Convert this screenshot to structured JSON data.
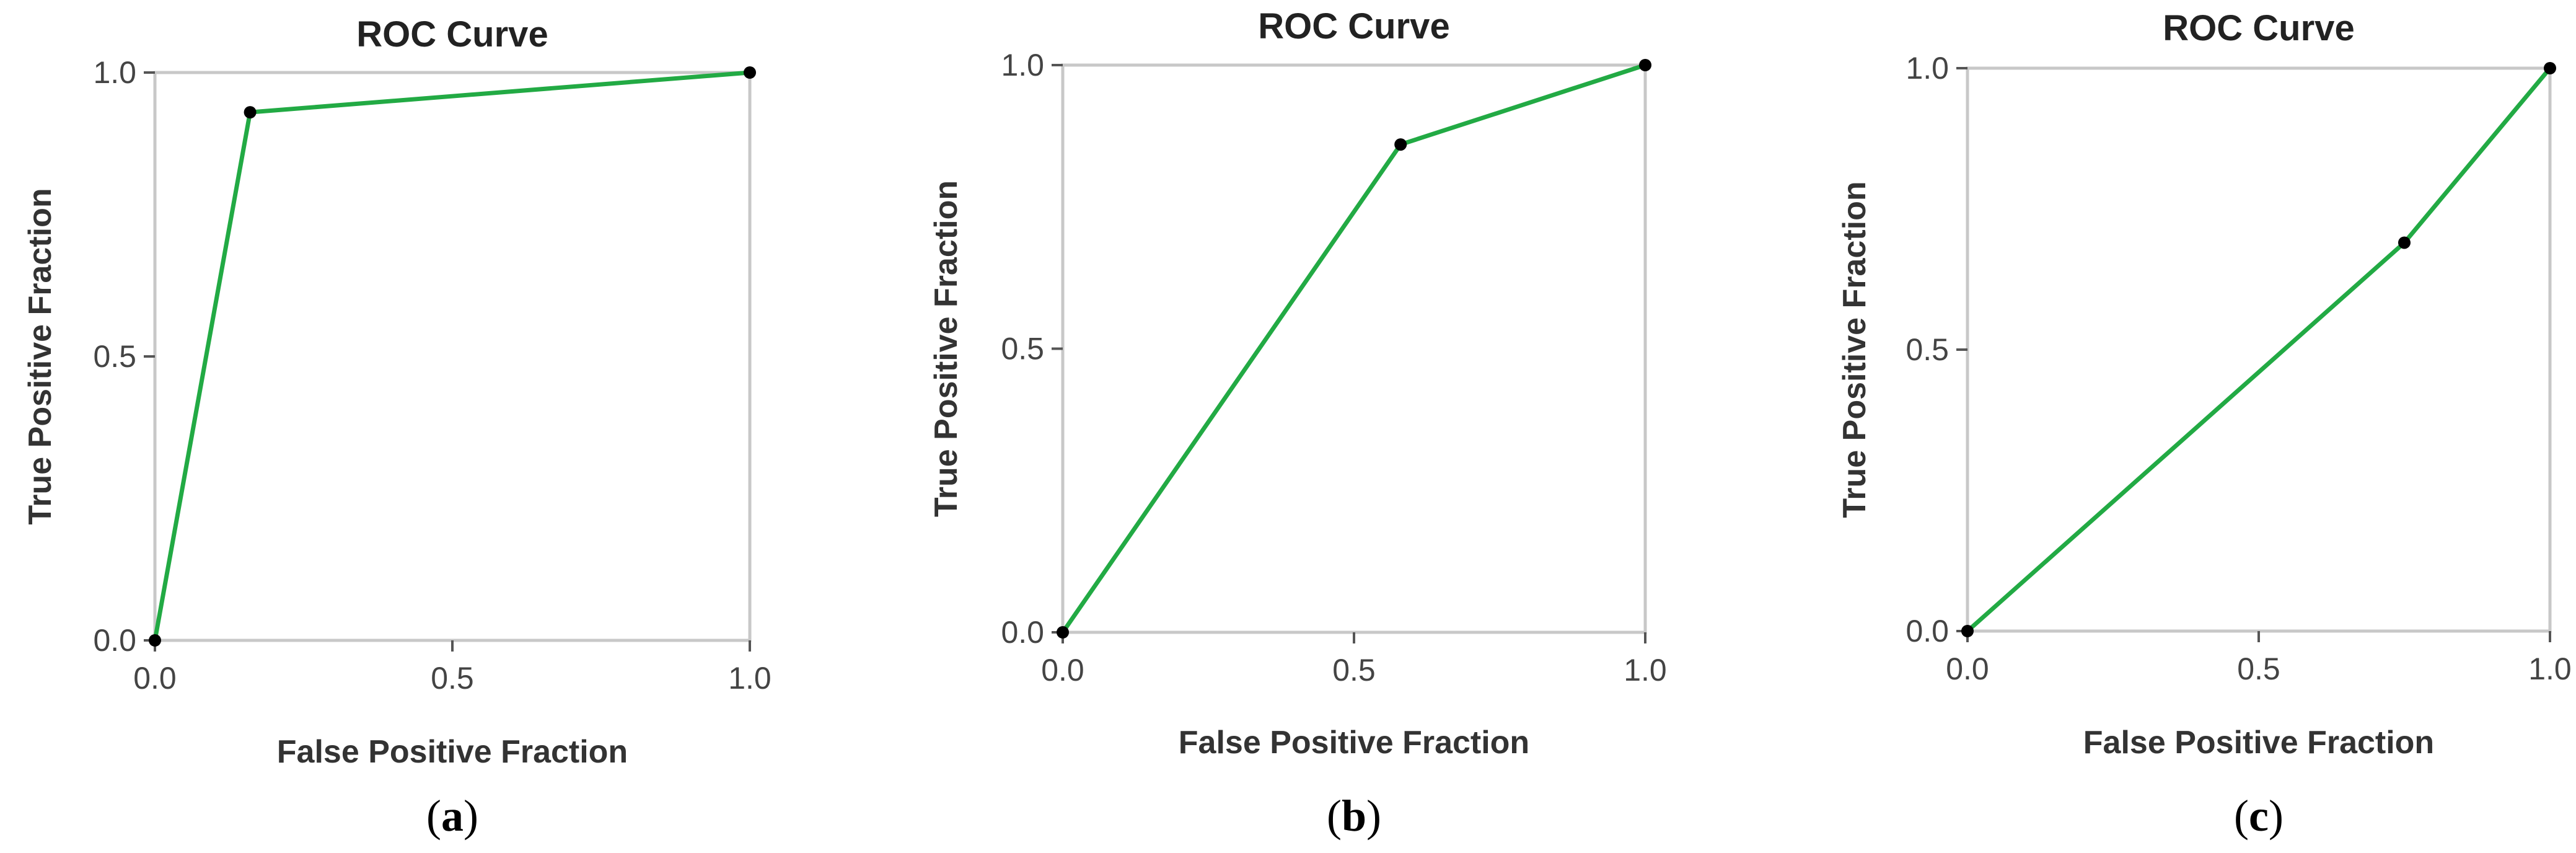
{
  "colors": {
    "curve": "#22aa44",
    "point": "#000000"
  },
  "chart_data": [
    {
      "type": "line",
      "title": "ROC Curve",
      "xlabel": "False Positive Fraction",
      "ylabel": "True Positive Fraction",
      "xlim": [
        0,
        1
      ],
      "ylim": [
        0,
        1
      ],
      "xticks": [
        0.0,
        0.5,
        1.0
      ],
      "yticks": [
        0.0,
        0.5,
        1.0
      ],
      "xtick_labels": [
        "0.0",
        "0.5",
        "1.0"
      ],
      "ytick_labels": [
        "0.0",
        "0.5",
        "1.0"
      ],
      "grid": false,
      "series": [
        {
          "name": "ROC",
          "x": [
            0.0,
            0.16,
            1.0
          ],
          "y": [
            0.0,
            0.93,
            1.0
          ]
        }
      ],
      "caption_open": "(",
      "caption_letter": "a",
      "caption_close": ")"
    },
    {
      "type": "line",
      "title": "ROC Curve",
      "xlabel": "False Positive Fraction",
      "ylabel": "True Positive Fraction",
      "xlim": [
        0,
        1
      ],
      "ylim": [
        0,
        1
      ],
      "xticks": [
        0.0,
        0.5,
        1.0
      ],
      "yticks": [
        0.0,
        0.5,
        1.0
      ],
      "xtick_labels": [
        "0.0",
        "0.5",
        "1.0"
      ],
      "ytick_labels": [
        "0.0",
        "0.5",
        "1.0"
      ],
      "grid": false,
      "series": [
        {
          "name": "ROC",
          "x": [
            0.0,
            0.58,
            1.0
          ],
          "y": [
            0.0,
            0.86,
            1.0
          ]
        }
      ],
      "caption_open": "(",
      "caption_letter": "b",
      "caption_close": ")"
    },
    {
      "type": "line",
      "title": "ROC Curve",
      "xlabel": "False Positive Fraction",
      "ylabel": "True Positive Fraction",
      "xlim": [
        0,
        1
      ],
      "ylim": [
        0,
        1
      ],
      "xticks": [
        0.0,
        0.5,
        1.0
      ],
      "yticks": [
        0.0,
        0.5,
        1.0
      ],
      "xtick_labels": [
        "0.0",
        "0.5",
        "1.0"
      ],
      "ytick_labels": [
        "0.0",
        "0.5",
        "1.0"
      ],
      "grid": false,
      "series": [
        {
          "name": "ROC",
          "x": [
            0.0,
            0.75,
            1.0
          ],
          "y": [
            0.0,
            0.69,
            1.0
          ]
        }
      ],
      "caption_open": "(",
      "caption_letter": "c",
      "caption_close": ")"
    }
  ]
}
